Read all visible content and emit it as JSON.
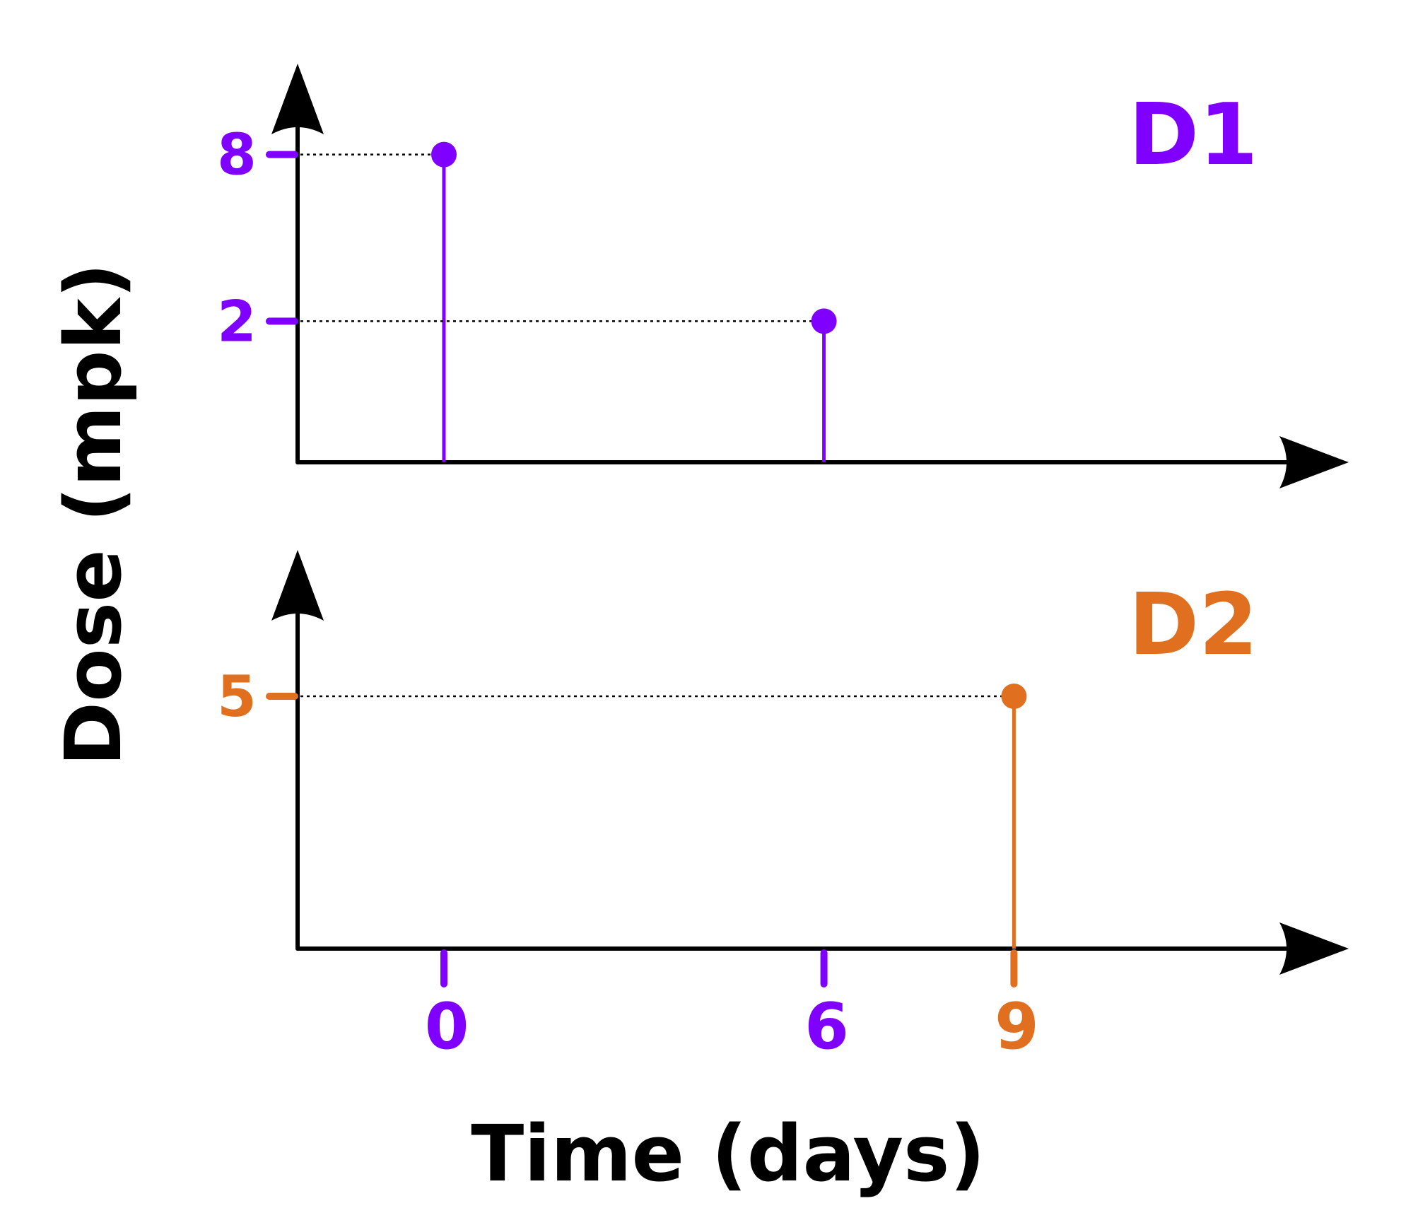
{
  "chart_data": {
    "type": "stem",
    "xlabel": "Time (days)",
    "ylabel": "Dose (mpk)",
    "x_ticks": [
      {
        "label": "0",
        "value": 0,
        "color": "#8000ff"
      },
      {
        "label": "6",
        "value": 6,
        "color": "#8000ff"
      },
      {
        "label": "9",
        "value": 9,
        "color": "#e07020"
      }
    ],
    "panels": [
      {
        "name": "D1",
        "color": "#8000ff",
        "y_ticks": [
          {
            "label": "8",
            "value": 8
          },
          {
            "label": "2",
            "value": 2
          }
        ],
        "points": [
          {
            "x": 0,
            "y": 8
          },
          {
            "x": 6,
            "y": 2
          }
        ]
      },
      {
        "name": "D2",
        "color": "#e07020",
        "y_ticks": [
          {
            "label": "5",
            "value": 5
          }
        ],
        "points": [
          {
            "x": 9,
            "y": 5
          }
        ]
      }
    ]
  }
}
